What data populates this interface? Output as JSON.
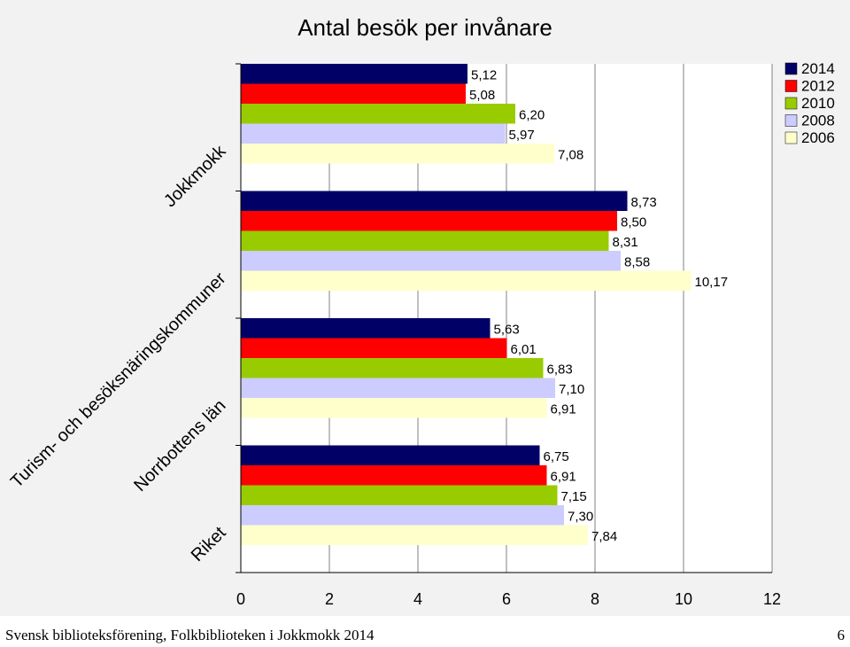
{
  "chart_data": {
    "type": "bar",
    "orientation": "horizontal",
    "title": "Antal besök per invånare",
    "categories": [
      "Jokkmokk",
      "Turism- och besöksnäringskommuner",
      "Norrbottens län",
      "Riket"
    ],
    "series": [
      {
        "name": "2014",
        "color": "#000066",
        "values": [
          5.12,
          8.73,
          5.63,
          6.75
        ],
        "labels": [
          "5,12",
          "8,73",
          "5,63",
          "6,75"
        ]
      },
      {
        "name": "2012",
        "color": "#ff0000",
        "values": [
          5.08,
          8.5,
          6.01,
          6.91
        ],
        "labels": [
          "5,08",
          "8,50",
          "6,01",
          "6,91"
        ]
      },
      {
        "name": "2010",
        "color": "#99cc00",
        "values": [
          6.2,
          8.31,
          6.83,
          7.15
        ],
        "labels": [
          "6,20",
          "8,31",
          "6,83",
          "7,15"
        ]
      },
      {
        "name": "2008",
        "color": "#ccccff",
        "values": [
          5.97,
          8.58,
          7.1,
          7.3
        ],
        "labels": [
          "5,97",
          "8,58",
          "7,10",
          "7,30"
        ]
      },
      {
        "name": "2006",
        "color": "#ffffcc",
        "values": [
          7.08,
          10.17,
          6.91,
          7.84
        ],
        "labels": [
          "7,08",
          "10,17",
          "6,91",
          "7,84"
        ]
      }
    ],
    "xlim": [
      0,
      12
    ],
    "x_ticks": [
      "0",
      "2",
      "4",
      "6",
      "8",
      "10",
      "12"
    ],
    "grid": true,
    "legend_position": "top-right"
  },
  "footer": {
    "left": "Svensk biblioteksförening, Folkbiblioteken i Jokkmokk 2014",
    "right": "6"
  }
}
